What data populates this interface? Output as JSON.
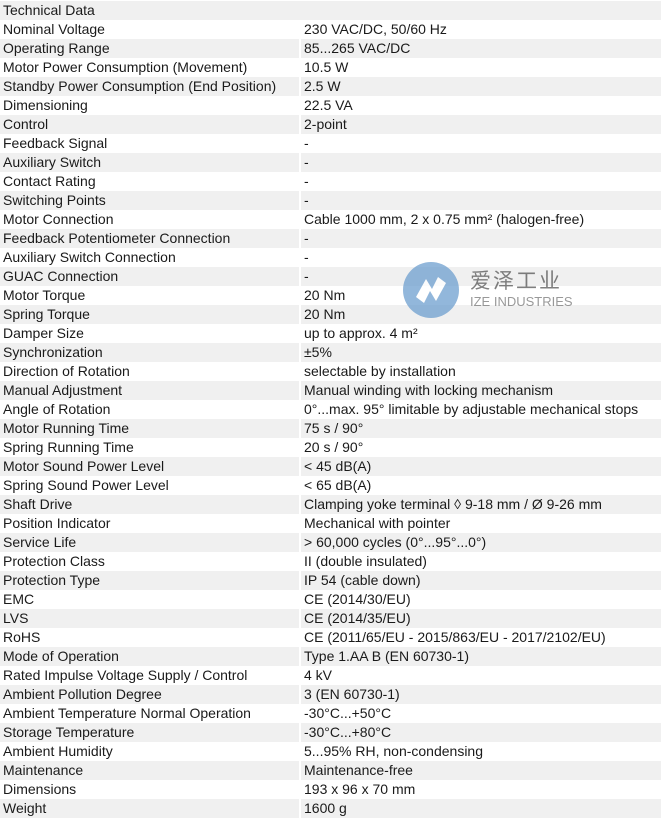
{
  "header": "Technical Data",
  "rows": [
    [
      "Nominal Voltage",
      "230 VAC/DC, 50/60 Hz"
    ],
    [
      "Operating Range",
      "85...265 VAC/DC"
    ],
    [
      "Motor Power Consumption (Movement)",
      "10.5 W"
    ],
    [
      "Standby Power Consumption (End Position)",
      "2.5 W"
    ],
    [
      "Dimensioning",
      "22.5 VA"
    ],
    [
      "Control",
      "2-point"
    ],
    [
      "Feedback Signal",
      "-"
    ],
    [
      "Auxiliary Switch",
      "-"
    ],
    [
      "Contact Rating",
      "-"
    ],
    [
      "Switching Points",
      "-"
    ],
    [
      "Motor Connection",
      "Cable 1000 mm, 2 x 0.75 mm² (halogen-free)"
    ],
    [
      "Feedback Potentiometer Connection",
      "-"
    ],
    [
      "Auxiliary Switch Connection",
      "-"
    ],
    [
      "GUAC Connection",
      "-"
    ],
    [
      "Motor Torque",
      "20 Nm"
    ],
    [
      "Spring Torque",
      "20 Nm"
    ],
    [
      "Damper Size",
      "up to approx. 4 m²"
    ],
    [
      "Synchronization",
      "±5%"
    ],
    [
      "Direction of Rotation",
      "selectable by installation"
    ],
    [
      "Manual Adjustment",
      "Manual winding with locking mechanism"
    ],
    [
      "Angle of Rotation",
      "0°...max. 95° limitable by adjustable mechanical stops"
    ],
    [
      "Motor Running Time",
      "75 s / 90°"
    ],
    [
      "Spring Running Time",
      "20 s / 90°"
    ],
    [
      "Motor Sound Power Level",
      "< 45 dB(A)"
    ],
    [
      "Spring Sound Power Level",
      "< 65 dB(A)"
    ],
    [
      "Shaft Drive",
      "Clamping yoke terminal ◊ 9-18 mm / Ø 9-26 mm"
    ],
    [
      "Position Indicator",
      "Mechanical with pointer"
    ],
    [
      "Service Life",
      "> 60,000 cycles (0°...95°...0°)"
    ],
    [
      "Protection Class",
      "II (double insulated)"
    ],
    [
      "Protection Type",
      "IP 54 (cable down)"
    ],
    [
      "EMC",
      "CE (2014/30/EU)"
    ],
    [
      "LVS",
      "CE (2014/35/EU)"
    ],
    [
      "RoHS",
      "CE (2011/65/EU - 2015/863/EU - 2017/2102/EU)"
    ],
    [
      "Mode of Operation",
      "Type 1.AA B (EN 60730-1)"
    ],
    [
      "Rated Impulse Voltage Supply / Control",
      "4 kV"
    ],
    [
      "Ambient Pollution Degree",
      "3 (EN 60730-1)"
    ],
    [
      "Ambient Temperature Normal Operation",
      "-30°C...+50°C"
    ],
    [
      "Storage Temperature",
      "-30°C...+80°C"
    ],
    [
      "Ambient Humidity",
      "5...95% RH, non-condensing"
    ],
    [
      "Maintenance",
      "Maintenance-free"
    ],
    [
      "Dimensions",
      "193 x 96 x 70 mm"
    ],
    [
      "Weight",
      "1600 g"
    ]
  ],
  "watermark": {
    "cn": "爱泽工业",
    "en": "IZE INDUSTRIES",
    "color": "#6e9fcf"
  }
}
